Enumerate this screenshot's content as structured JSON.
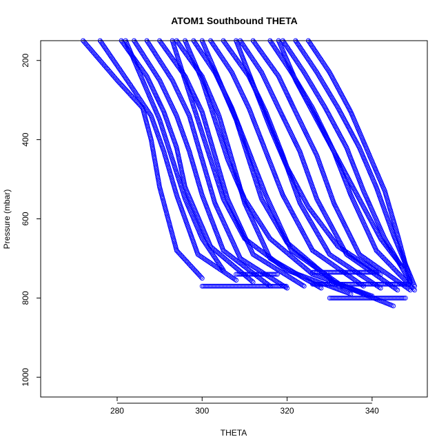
{
  "chart_data": {
    "type": "scatter",
    "title": "ATOM1 Southbound THETA",
    "xlabel": "THETA",
    "ylabel": "Pressure (mbar)",
    "xlim": [
      262,
      353
    ],
    "ylim": [
      1050,
      150
    ],
    "y_reversed": true,
    "x_ticks": [
      280,
      300,
      320,
      340
    ],
    "y_ticks": [
      200,
      400,
      600,
      800,
      1000
    ],
    "marker": "open-circle",
    "color": "#0000ff",
    "grid": false,
    "series": [
      {
        "x": [
          272,
          280,
          286,
          288,
          290,
          294,
          300
        ],
        "y": [
          150,
          250,
          320,
          400,
          520,
          680,
          750
        ]
      },
      {
        "x": [
          276,
          283,
          288,
          291,
          294,
          299,
          308
        ],
        "y": [
          150,
          260,
          340,
          430,
          540,
          690,
          755
        ]
      },
      {
        "x": [
          281,
          287,
          291,
          294,
          296,
          302,
          312
        ],
        "y": [
          150,
          240,
          330,
          420,
          520,
          670,
          760
        ]
      },
      {
        "x": [
          284,
          290,
          294,
          297,
          300,
          305,
          316
        ],
        "y": [
          150,
          250,
          340,
          430,
          540,
          680,
          770
        ]
      },
      {
        "x": [
          287,
          293,
          297,
          300,
          303,
          309,
          320
        ],
        "y": [
          150,
          250,
          340,
          450,
          560,
          700,
          775
        ]
      },
      {
        "x": [
          290,
          296,
          300,
          303,
          306,
          312,
          324
        ],
        "y": [
          150,
          240,
          330,
          440,
          550,
          690,
          770
        ]
      },
      {
        "x": [
          294,
          300,
          304,
          307,
          310,
          316,
          328
        ],
        "y": [
          150,
          240,
          340,
          450,
          560,
          700,
          775
        ]
      },
      {
        "x": [
          298,
          303,
          307,
          311,
          315,
          321,
          333
        ],
        "y": [
          150,
          230,
          320,
          430,
          540,
          680,
          770
        ]
      },
      {
        "x": [
          302,
          307,
          311,
          315,
          319,
          326,
          338
        ],
        "y": [
          150,
          230,
          320,
          430,
          540,
          680,
          770
        ]
      },
      {
        "x": [
          305,
          311,
          315,
          319,
          323,
          330,
          342
        ],
        "y": [
          150,
          240,
          330,
          440,
          560,
          690,
          775
        ]
      },
      {
        "x": [
          309,
          314,
          318,
          323,
          327,
          334,
          346
        ],
        "y": [
          150,
          230,
          320,
          430,
          550,
          690,
          780
        ]
      },
      {
        "x": [
          312,
          318,
          322,
          327,
          331,
          337,
          349
        ],
        "y": [
          150,
          240,
          330,
          440,
          560,
          690,
          780
        ]
      },
      {
        "x": [
          316,
          321,
          326,
          331,
          335,
          341,
          350
        ],
        "y": [
          150,
          230,
          320,
          430,
          540,
          680,
          780
        ]
      },
      {
        "x": [
          319,
          324,
          329,
          334,
          338,
          343,
          349
        ],
        "y": [
          150,
          230,
          320,
          420,
          530,
          650,
          760
        ]
      },
      {
        "x": [
          322,
          327,
          332,
          337,
          341,
          345,
          350
        ],
        "y": [
          150,
          230,
          320,
          420,
          520,
          640,
          770
        ]
      },
      {
        "x": [
          325,
          330,
          335,
          339,
          343,
          346,
          349
        ],
        "y": [
          150,
          230,
          330,
          430,
          530,
          640,
          760
        ]
      },
      {
        "x": [
          300,
          304,
          308,
          311,
          314,
          320,
          331,
          345
        ],
        "y": [
          150,
          250,
          350,
          450,
          550,
          660,
          760,
          820
        ]
      },
      {
        "x": [
          293,
          296,
          299,
          302,
          305,
          310,
          320,
          335
        ],
        "y": [
          150,
          250,
          350,
          450,
          550,
          650,
          730,
          790
        ]
      },
      {
        "x": [
          296,
          300,
          303,
          306,
          310,
          316,
          326,
          340
        ],
        "y": [
          150,
          250,
          350,
          450,
          550,
          650,
          740,
          795
        ]
      },
      {
        "x": [
          282,
          286,
          290,
          293,
          296,
          300,
          305
        ],
        "y": [
          150,
          250,
          350,
          450,
          550,
          650,
          730
        ]
      },
      {
        "x": [
          308,
          312,
          316,
          320,
          325,
          332,
          342
        ],
        "y": [
          150,
          260,
          370,
          470,
          570,
          670,
          740
        ]
      },
      {
        "x": [
          318,
          322,
          327,
          332,
          337,
          342,
          347
        ],
        "y": [
          150,
          250,
          350,
          450,
          550,
          650,
          720
        ]
      }
    ],
    "horizontal_runs": [
      {
        "x": [
          300,
          320
        ],
        "y": 770
      },
      {
        "x": [
          326,
          349
        ],
        "y": 765
      },
      {
        "x": [
          326,
          341
        ],
        "y": 735
      },
      {
        "x": [
          330,
          348
        ],
        "y": 800
      },
      {
        "x": [
          308,
          318
        ],
        "y": 740
      }
    ]
  }
}
